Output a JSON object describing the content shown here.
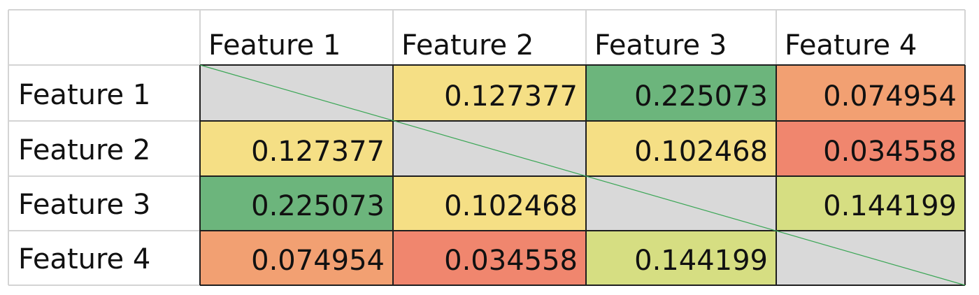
{
  "chart_data": {
    "type": "heatmap",
    "title": "",
    "column_labels": [
      "Feature 1",
      "Feature 2",
      "Feature 3",
      "Feature 4"
    ],
    "row_labels": [
      "Feature 1",
      "Feature 2",
      "Feature 3",
      "Feature 4"
    ],
    "values": [
      [
        null,
        "0.127377",
        "0.225073",
        "0.074954"
      ],
      [
        "0.127377",
        null,
        "0.102468",
        "0.034558"
      ],
      [
        "0.225073",
        "0.102468",
        null,
        "0.144199"
      ],
      [
        "0.074954",
        "0.034558",
        "0.144199",
        null
      ]
    ],
    "cell_colors": [
      [
        "#d9d9d9",
        "#f5df85",
        "#6cb57c",
        "#f2a072"
      ],
      [
        "#f5df85",
        "#d9d9d9",
        "#f5df85",
        "#f0866e"
      ],
      [
        "#6cb57c",
        "#f5df85",
        "#d9d9d9",
        "#d6de82"
      ],
      [
        "#f2a072",
        "#f0866e",
        "#d6de82",
        "#d9d9d9"
      ]
    ],
    "diagonal_line_color": "#3aa655"
  }
}
